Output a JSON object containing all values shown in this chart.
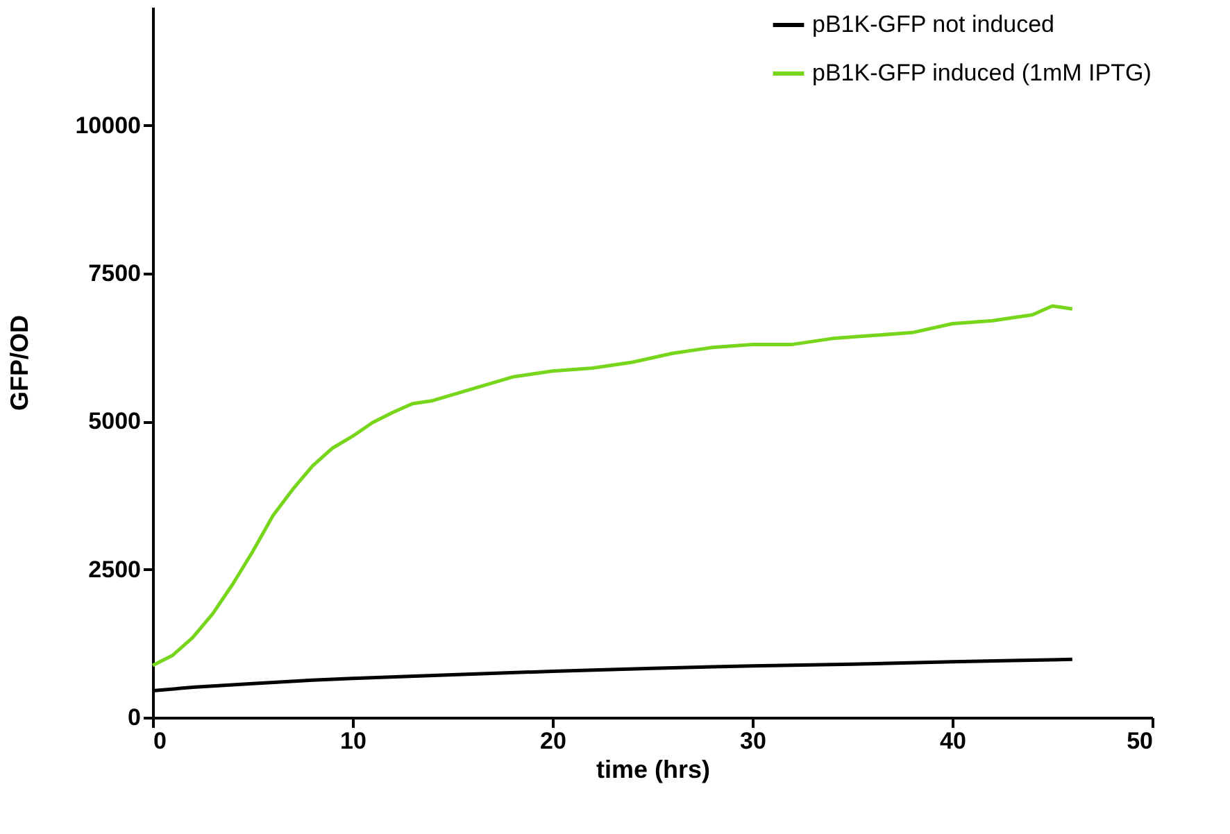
{
  "chart_data": {
    "type": "line",
    "xlabel": "time (hrs)",
    "ylabel": "GFP/OD",
    "xlim": [
      0,
      50
    ],
    "xticks": [
      0,
      10,
      20,
      30,
      40,
      50
    ],
    "ylim": [
      0,
      12000
    ],
    "yticks": [
      0,
      2500,
      5000,
      7500,
      10000
    ],
    "grid": false,
    "legend": "top right",
    "marker": "none",
    "line_style": "solid",
    "series": [
      {
        "name": "pB1K-GFP not induced",
        "color": "#000000",
        "x": [
          0,
          2,
          5,
          8,
          10,
          15,
          20,
          25,
          30,
          35,
          40,
          43,
          46
        ],
        "values": [
          450,
          510,
          570,
          630,
          660,
          720,
          780,
          830,
          870,
          900,
          940,
          960,
          980
        ]
      },
      {
        "name": "pB1K-GFP induced (1mM IPTG)",
        "color": "#77d61c",
        "x": [
          0,
          1,
          2,
          3,
          4,
          5,
          6,
          7,
          8,
          9,
          10,
          11,
          12,
          13,
          14,
          15,
          16,
          17,
          18,
          19,
          20,
          22,
          24,
          26,
          28,
          30,
          32,
          34,
          36,
          38,
          40,
          42,
          44,
          45,
          46
        ],
        "values": [
          880,
          1050,
          1350,
          1750,
          2250,
          2800,
          3400,
          3850,
          4250,
          4550,
          4750,
          4980,
          5150,
          5300,
          5350,
          5450,
          5550,
          5650,
          5750,
          5800,
          5850,
          5900,
          6000,
          6150,
          6250,
          6300,
          6300,
          6400,
          6450,
          6500,
          6650,
          6700,
          6800,
          6950,
          6900
        ]
      }
    ]
  }
}
